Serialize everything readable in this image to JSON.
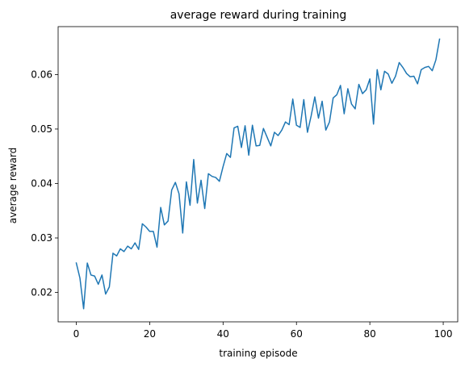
{
  "chart_data": {
    "type": "line",
    "title": "average reward during training",
    "xlabel": "training episode",
    "ylabel": "average reward",
    "xlim": [
      -4.95,
      103.95
    ],
    "ylim": [
      0.0146,
      0.0688
    ],
    "xticks": [
      0,
      20,
      40,
      60,
      80,
      100
    ],
    "yticks": [
      0.02,
      0.03,
      0.04,
      0.05,
      0.06
    ],
    "ytick_labels": [
      "0.02",
      "0.03",
      "0.04",
      "0.05",
      "0.06"
    ],
    "grid": false,
    "series": [
      {
        "color": "#1f77b4",
        "x": [
          0,
          1,
          2,
          3,
          4,
          5,
          6,
          7,
          8,
          9,
          10,
          11,
          12,
          13,
          14,
          15,
          16,
          17,
          18,
          19,
          20,
          21,
          22,
          23,
          24,
          25,
          26,
          27,
          28,
          29,
          30,
          31,
          32,
          33,
          34,
          35,
          36,
          37,
          38,
          39,
          40,
          41,
          42,
          43,
          44,
          45,
          46,
          47,
          48,
          49,
          50,
          51,
          52,
          53,
          54,
          55,
          56,
          57,
          58,
          59,
          60,
          61,
          62,
          63,
          64,
          65,
          66,
          67,
          68,
          69,
          70,
          71,
          72,
          73,
          74,
          75,
          76,
          77,
          78,
          79,
          80,
          81,
          82,
          83,
          84,
          85,
          86,
          87,
          88,
          89,
          90,
          91,
          92,
          93,
          94,
          95,
          96,
          97,
          98,
          99
        ],
        "y": [
          0.0254,
          0.0226,
          0.017,
          0.0254,
          0.0232,
          0.023,
          0.0215,
          0.0232,
          0.0197,
          0.021,
          0.0272,
          0.0267,
          0.028,
          0.0275,
          0.0285,
          0.028,
          0.0291,
          0.0279,
          0.0326,
          0.032,
          0.0312,
          0.0312,
          0.0283,
          0.0356,
          0.0324,
          0.0331,
          0.0388,
          0.0402,
          0.0381,
          0.0309,
          0.0403,
          0.036,
          0.0444,
          0.0364,
          0.0406,
          0.0354,
          0.0418,
          0.0413,
          0.0411,
          0.0404,
          0.0431,
          0.0455,
          0.0448,
          0.0502,
          0.0505,
          0.0466,
          0.0506,
          0.0452,
          0.0507,
          0.0469,
          0.047,
          0.0501,
          0.0485,
          0.0469,
          0.0494,
          0.0488,
          0.0498,
          0.0513,
          0.0508,
          0.0555,
          0.0507,
          0.0503,
          0.0554,
          0.0494,
          0.0524,
          0.0559,
          0.052,
          0.0551,
          0.0498,
          0.0513,
          0.0557,
          0.0563,
          0.058,
          0.0528,
          0.0574,
          0.0546,
          0.0537,
          0.0582,
          0.0565,
          0.0572,
          0.0592,
          0.0509,
          0.0609,
          0.0572,
          0.0606,
          0.0601,
          0.0584,
          0.0597,
          0.0622,
          0.0613,
          0.0602,
          0.0596,
          0.0597,
          0.0583,
          0.0609,
          0.0613,
          0.0615,
          0.0607,
          0.0627,
          0.0665
        ]
      }
    ]
  }
}
